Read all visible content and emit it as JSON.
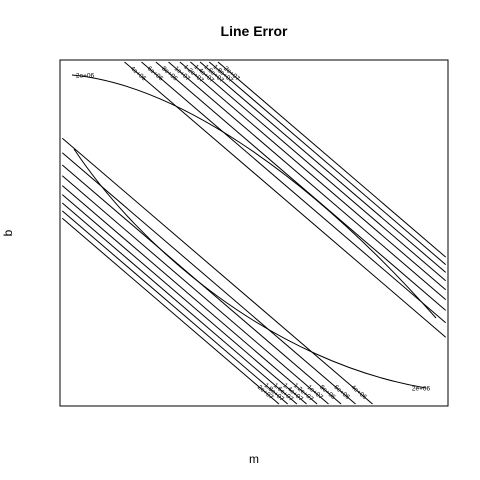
{
  "chart_data": {
    "type": "contour",
    "title": "Line Error",
    "xlabel": "m",
    "ylabel": "b",
    "grid": false,
    "line_color": "#000000",
    "background": "#ffffff",
    "contour_levels": [
      {
        "value": 2000000,
        "label": "2e+06"
      },
      {
        "value": 4000000,
        "label": "4e+06"
      },
      {
        "value": 6000000,
        "label": "6e+06"
      },
      {
        "value": 8000000,
        "label": "8e+06"
      },
      {
        "value": 10000000,
        "label": "1e+07"
      },
      {
        "value": 12000000,
        "label": "1.2e+07"
      },
      {
        "value": 14000000,
        "label": "1.4e+07"
      },
      {
        "value": 16000000,
        "label": "1.6e+07"
      },
      {
        "value": 18000000,
        "label": "1.8e+07"
      },
      {
        "value": 20000000,
        "label": "2e+07"
      }
    ]
  }
}
